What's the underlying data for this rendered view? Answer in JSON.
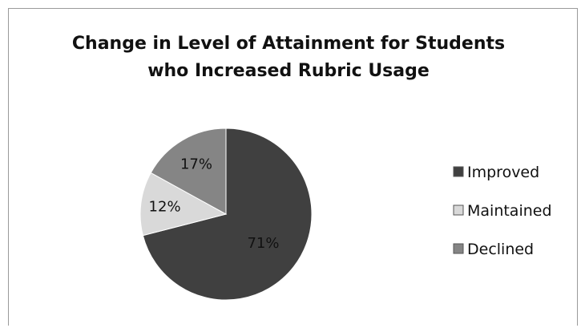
{
  "chart_data": {
    "type": "pie",
    "title": "Change in Level of Attainment for Students who Increased Rubric Usage",
    "title_lines": [
      "Change in Level of Attainment for Students",
      "who Increased Rubric Usage"
    ],
    "categories": [
      "Improved",
      "Maintained",
      "Declined"
    ],
    "values": [
      71,
      12,
      17
    ],
    "labels": [
      "71%",
      "12%",
      "17%"
    ],
    "colors": [
      "#404040",
      "#d9d9d9",
      "#858585"
    ],
    "legend_position": "right",
    "start_angle": "12 o'clock",
    "direction": "clockwise"
  }
}
